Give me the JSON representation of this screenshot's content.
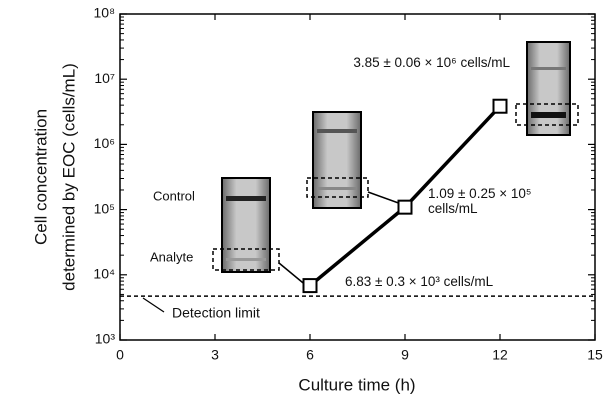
{
  "chart_data": {
    "type": "line",
    "xlabel": "Culture time (h)",
    "ylabel": [
      "Cell concentration",
      "determined by EOC (cells/mL)"
    ],
    "x": [
      6,
      9,
      12
    ],
    "series": [
      {
        "color": "#000000",
        "values": [
          6830,
          109000,
          3850000
        ],
        "value_labels": [
          "6.83 ± 0.3 × 10³ cells/mL",
          "1.09 ± 0.25 × 10⁵ cells/mL",
          "3.85 ± 0.06 × 10⁶ cells/mL"
        ]
      }
    ],
    "xlim": [
      0,
      15
    ],
    "xticks": [
      0,
      3,
      6,
      9,
      12,
      15
    ],
    "ylim": [
      1000,
      100000000
    ],
    "log_y": true,
    "yticks": [
      {
        "value": 1000,
        "label": "10³"
      },
      {
        "value": 10000,
        "label": "10⁴"
      },
      {
        "value": 100000,
        "label": "10⁵"
      },
      {
        "value": 1000000,
        "label": "10⁶"
      },
      {
        "value": 10000000,
        "label": "10⁷"
      },
      {
        "value": 100000000,
        "label": "10⁸"
      }
    ],
    "detection_limit": 4700,
    "detection_label": "Detection limit",
    "gel_labels": [
      "Control",
      "Analyte"
    ],
    "grid": false
  }
}
